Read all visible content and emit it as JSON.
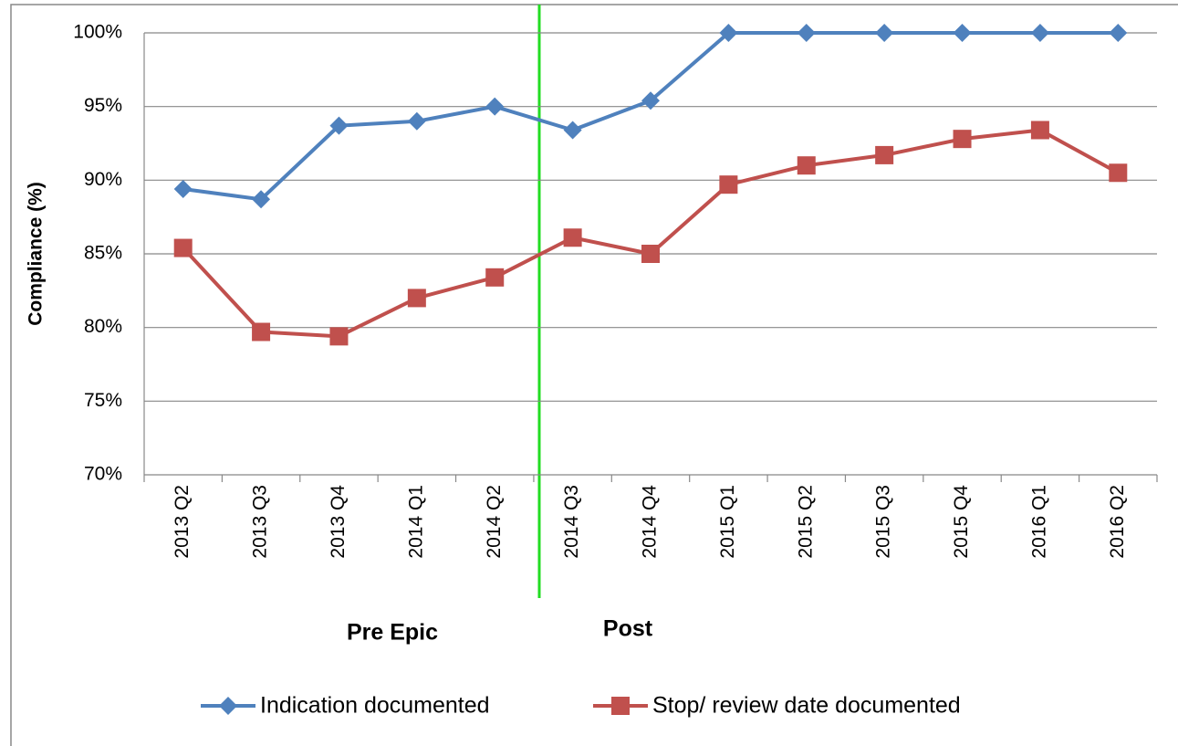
{
  "chart_data": {
    "type": "line",
    "y_label": "Compliance (%)",
    "categories": [
      "2013 Q2",
      "2013 Q3",
      "2013 Q4",
      "2014 Q1",
      "2014 Q2",
      "2014 Q3",
      "2014 Q4",
      "2015 Q1",
      "2015 Q2",
      "2015 Q3",
      "2015 Q4",
      "2016 Q1",
      "2016 Q2"
    ],
    "series": [
      {
        "name": "Indication documented",
        "color": "#4f81bd",
        "marker": "diamond",
        "values": [
          89.4,
          88.7,
          93.7,
          94.0,
          95.0,
          93.4,
          95.4,
          100,
          100,
          100,
          100,
          100,
          100
        ]
      },
      {
        "name": "Stop/ review date documented",
        "color": "#c0504d",
        "marker": "square",
        "values": [
          85.4,
          79.7,
          79.4,
          82.0,
          83.4,
          86.1,
          85.0,
          89.7,
          91.0,
          91.7,
          92.8,
          93.4,
          90.5
        ]
      }
    ],
    "ylim": [
      70,
      100
    ],
    "yticks": [
      {
        "value": 70,
        "label": "70%"
      },
      {
        "value": 75,
        "label": "75%"
      },
      {
        "value": 80,
        "label": "80%"
      },
      {
        "value": 85,
        "label": "85%"
      },
      {
        "value": 90,
        "label": "90%"
      },
      {
        "value": 95,
        "label": "95%"
      },
      {
        "value": 100,
        "label": "100%"
      }
    ],
    "grid": true,
    "annotations": [
      "Pre Epic",
      "Post"
    ],
    "legend": "bottom"
  }
}
